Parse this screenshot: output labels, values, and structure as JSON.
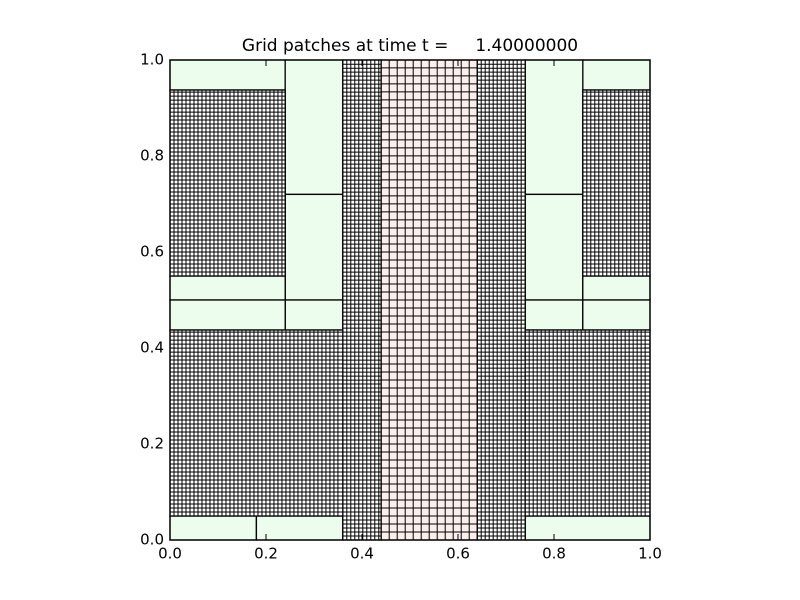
{
  "chart_data": {
    "type": "grid-patches",
    "title": "Grid patches at time t =     1.40000000",
    "xlim": [
      0,
      1
    ],
    "ylim": [
      0,
      1
    ],
    "xticks": [
      {
        "value": 0,
        "label": "0.0"
      },
      0.2,
      0.4,
      0.6,
      0.8,
      {
        "value": 1,
        "label": "1.0"
      }
    ],
    "yticks": [
      {
        "value": 0,
        "label": "0.0"
      },
      0.2,
      0.4,
      0.6,
      0.8,
      {
        "value": 1,
        "label": "1.0"
      }
    ],
    "levels": [
      {
        "color": "#edfded"
      },
      {
        "color": "#fdeeee",
        "dx": 0.01667
      },
      {
        "color": "#ffffff",
        "dx": 0.00833
      }
    ],
    "patches": [
      {
        "level": 0,
        "x": [
          0,
          0.24
        ],
        "y": [
          0.9375,
          1
        ]
      },
      {
        "level": 0,
        "x": [
          0.24,
          0.36
        ],
        "y": [
          0.72,
          1
        ]
      },
      {
        "level": 0,
        "x": [
          0.24,
          0.36
        ],
        "y": [
          0.5,
          0.72
        ]
      },
      {
        "level": 0,
        "x": [
          0.24,
          0.36
        ],
        "y": [
          0.4375,
          0.5
        ]
      },
      {
        "level": 0,
        "x": [
          0,
          0.24
        ],
        "y": [
          0.5,
          0.55
        ]
      },
      {
        "level": 0,
        "x": [
          0,
          0.24
        ],
        "y": [
          0.4375,
          0.5
        ]
      },
      {
        "level": 0,
        "x": [
          0,
          0.18
        ],
        "y": [
          0,
          0.05
        ]
      },
      {
        "level": 0,
        "x": [
          0.18,
          0.36
        ],
        "y": [
          0,
          0.05
        ]
      },
      {
        "level": 0,
        "x": [
          0.86,
          1
        ],
        "y": [
          0.9375,
          1
        ]
      },
      {
        "level": 0,
        "x": [
          0.74,
          0.86
        ],
        "y": [
          0.72,
          1
        ]
      },
      {
        "level": 0,
        "x": [
          0.74,
          0.86
        ],
        "y": [
          0.5,
          0.72
        ]
      },
      {
        "level": 0,
        "x": [
          0.74,
          0.86
        ],
        "y": [
          0.4375,
          0.5
        ]
      },
      {
        "level": 0,
        "x": [
          0.86,
          1
        ],
        "y": [
          0.5,
          0.55
        ]
      },
      {
        "level": 0,
        "x": [
          0.86,
          1
        ],
        "y": [
          0.4375,
          0.5
        ]
      },
      {
        "level": 0,
        "x": [
          0.74,
          1
        ],
        "y": [
          0,
          0.05
        ]
      },
      {
        "level": 2,
        "x": [
          0.36,
          0.44
        ],
        "y": [
          0,
          1
        ]
      },
      {
        "level": 2,
        "x": [
          0.64,
          0.74
        ],
        "y": [
          0,
          1
        ]
      },
      {
        "level": 2,
        "x": [
          0,
          0.24
        ],
        "y": [
          0.55,
          0.9375
        ]
      },
      {
        "level": 2,
        "x": [
          0,
          0.36
        ],
        "y": [
          0.05,
          0.4375
        ]
      },
      {
        "level": 2,
        "x": [
          0.86,
          1
        ],
        "y": [
          0.55,
          0.9375
        ]
      },
      {
        "level": 2,
        "x": [
          0.74,
          1
        ],
        "y": [
          0.05,
          0.4375
        ]
      },
      {
        "level": 1,
        "x": [
          0.44,
          0.64
        ],
        "y": [
          0,
          1
        ]
      }
    ]
  }
}
